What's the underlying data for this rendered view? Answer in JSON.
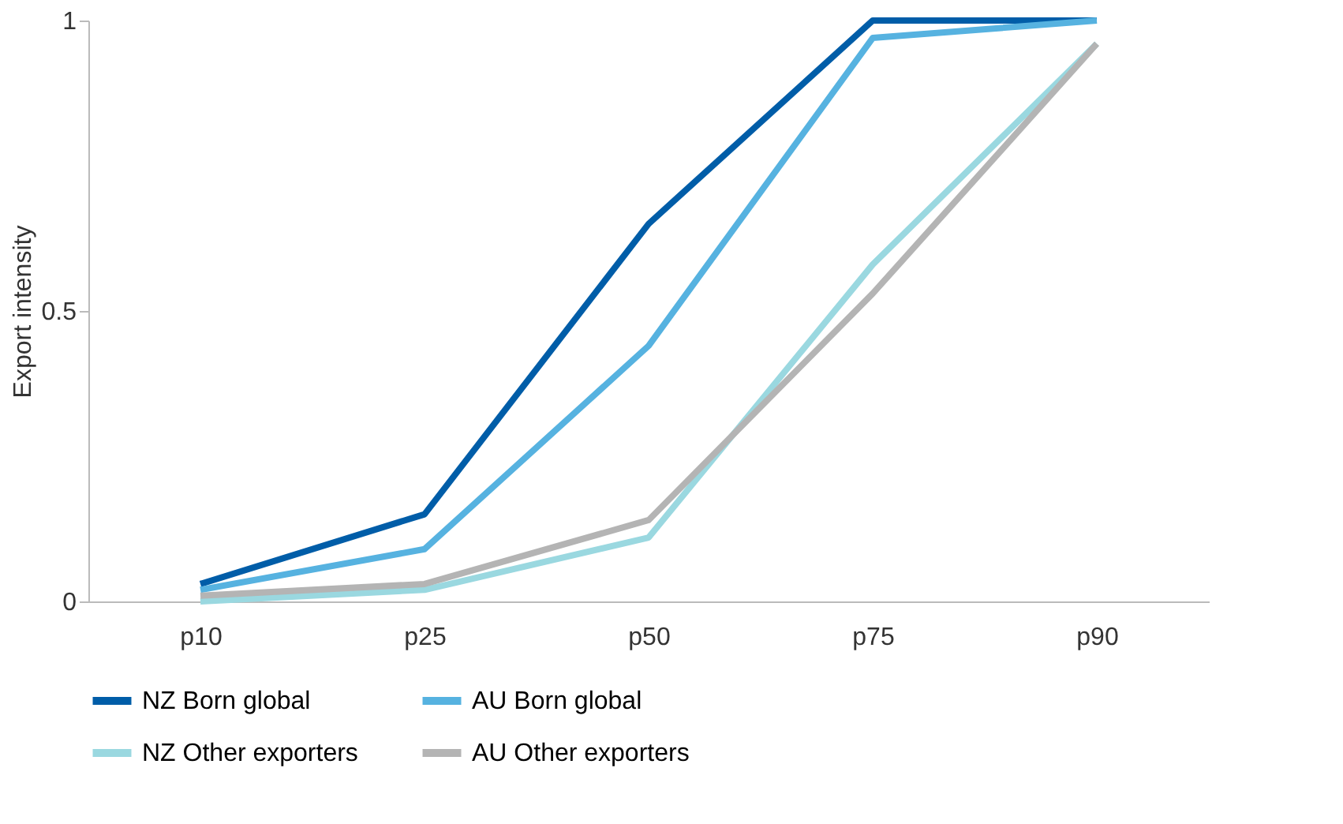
{
  "chart_data": {
    "type": "line",
    "ylabel": "Export intensity",
    "categories": [
      "p10",
      "p25",
      "p50",
      "p75",
      "p90"
    ],
    "series": [
      {
        "name": "NZ Born global",
        "color": "#005da8",
        "values": [
          0.03,
          0.15,
          0.65,
          1.0,
          1.0
        ]
      },
      {
        "name": "AU Born global",
        "color": "#56b2e0",
        "values": [
          0.02,
          0.09,
          0.44,
          0.97,
          1.0
        ]
      },
      {
        "name": "NZ Other exporters",
        "color": "#9ad8e0",
        "values": [
          0.0,
          0.02,
          0.11,
          0.58,
          0.96
        ]
      },
      {
        "name": "AU Other exporters",
        "color": "#b4b4b4",
        "values": [
          0.01,
          0.03,
          0.14,
          0.53,
          0.96
        ]
      }
    ],
    "ylim": [
      0,
      1
    ],
    "yticks": [
      0,
      0.5,
      1
    ],
    "grid": false,
    "legend": "bottom",
    "marker": "none",
    "line_style": "solid"
  }
}
